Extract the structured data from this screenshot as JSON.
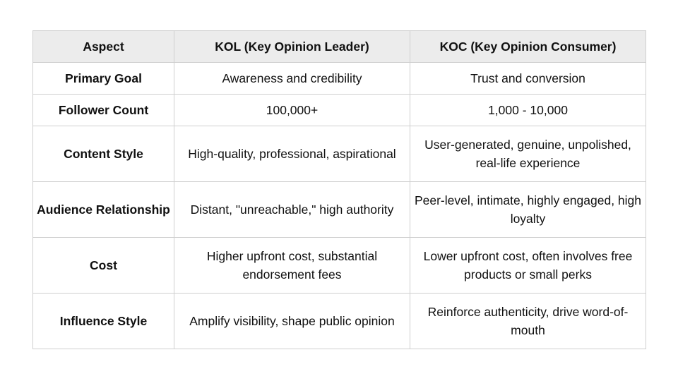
{
  "table": {
    "headers": [
      "Aspect",
      "KOL (Key Opinion Leader)",
      "KOC (Key Opinion Consumer)"
    ],
    "rows": [
      [
        "Primary Goal",
        "Awareness and credibility",
        "Trust and conversion"
      ],
      [
        "Follower Count",
        "100,000+",
        "1,000 - 10,000"
      ],
      [
        "Content Style",
        "High-quality, professional, aspirational",
        "User-generated, genuine, unpolished, real-life experience"
      ],
      [
        "Audience Relationship",
        "Distant, \"unreachable,\" high authority",
        "Peer-level, intimate, highly engaged, high loyalty"
      ],
      [
        "Cost",
        "Higher upfront cost, substantial endorsement fees",
        "Lower upfront cost, often involves free products or small perks"
      ],
      [
        "Influence Style",
        "Amplify visibility, shape public opinion",
        "Reinforce authenticity, drive word-of-mouth"
      ]
    ]
  }
}
